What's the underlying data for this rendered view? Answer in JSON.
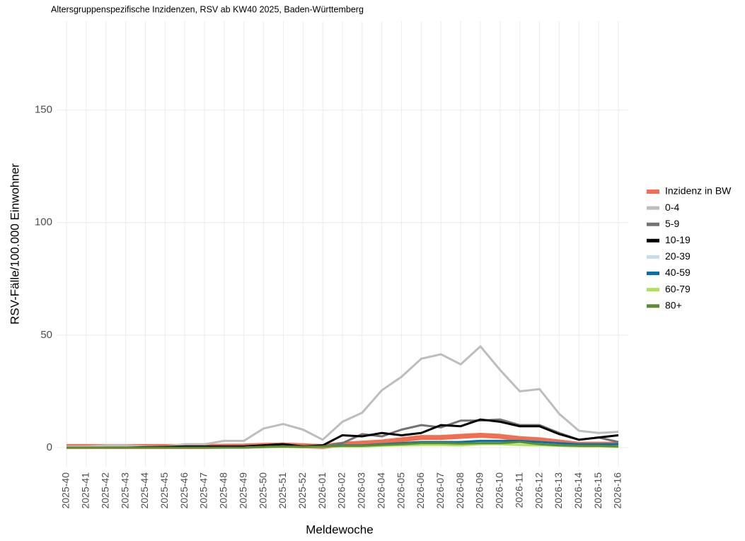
{
  "chart_data": {
    "type": "line",
    "title": "Altersgruppenspezifische Inzidenzen, RSV ab KW40 2025, Baden-Württemberg",
    "x_label": "Meldewoche",
    "y_label": "RSV-Fälle/100.000 Einwohner",
    "categories": [
      "2025-40",
      "2025-41",
      "2025-42",
      "2025-43",
      "2025-44",
      "2025-45",
      "2025-46",
      "2025-47",
      "2025-48",
      "2025-49",
      "2025-50",
      "2025-51",
      "2025-52",
      "2026-01",
      "2026-02",
      "2026-03",
      "2026-04",
      "2026-05",
      "2026-06",
      "2026-07",
      "2026-08",
      "2026-09",
      "2026-10",
      "2026-11",
      "2026-12",
      "2026-13",
      "2026-14",
      "2026-15",
      "2026-16"
    ],
    "ylim": [
      -8.5,
      189.5
    ],
    "yticks": [
      0,
      50,
      100,
      150
    ],
    "grid": true,
    "legend": "right",
    "series": [
      {
        "name": "Inzidenz in BW",
        "color": "#f26e50",
        "width": 7,
        "values": [
          0.5,
          0.5,
          0.5,
          0.5,
          0.5,
          0.5,
          0.5,
          0.5,
          0.6,
          0.7,
          1,
          1.2,
          0.8,
          0.5,
          1.5,
          2,
          2.5,
          3.5,
          4.5,
          4.5,
          5,
          5.5,
          5,
          4,
          3.5,
          2.5,
          1.5,
          1.5,
          1.5
        ]
      },
      {
        "name": "0-4",
        "color": "#bdbdbd",
        "width": 3,
        "values": [
          0.5,
          0.5,
          1,
          1,
          0.5,
          0.5,
          1.5,
          1.5,
          3,
          3,
          8.5,
          10.5,
          8,
          3.5,
          11.5,
          15.5,
          25.5,
          31.5,
          39.5,
          41.5,
          37,
          45,
          34.5,
          25,
          26,
          15,
          7.5,
          6.5,
          7
        ]
      },
      {
        "name": "5-9",
        "color": "#737373",
        "width": 3,
        "values": [
          0,
          0,
          0,
          0,
          0,
          0,
          0.5,
          0.5,
          0.5,
          0.5,
          1,
          1.5,
          0.5,
          0.5,
          2,
          6,
          5,
          8,
          10,
          9,
          12,
          12,
          12.5,
          10,
          10,
          6.5,
          3.5,
          4.5,
          2.5
        ]
      },
      {
        "name": "10-19",
        "color": "#000000",
        "width": 3,
        "values": [
          0,
          0,
          0,
          0,
          0.2,
          0.3,
          0.5,
          0.5,
          0.5,
          0.5,
          1,
          1.5,
          0.5,
          1,
          5.5,
          5,
          6.5,
          5.5,
          6.5,
          10,
          9.5,
          12.5,
          11.5,
          9.5,
          9.5,
          6,
          3.5,
          4.5,
          5.5
        ]
      },
      {
        "name": "20-39",
        "color": "#c6dbef",
        "width": 3,
        "values": [
          0,
          0,
          0,
          0,
          0,
          0,
          0,
          0,
          0,
          0,
          0.3,
          0.5,
          0.3,
          0.5,
          1,
          1,
          1.5,
          2,
          2,
          2.5,
          2.5,
          3,
          3,
          3,
          2.5,
          2,
          1.5,
          1.5,
          1
        ]
      },
      {
        "name": "40-59",
        "color": "#0570b0",
        "width": 3,
        "values": [
          0,
          0,
          0,
          0,
          0,
          0,
          0,
          0,
          0,
          0,
          0.3,
          0.5,
          0.3,
          0.5,
          1,
          1,
          1.5,
          2,
          2.5,
          2.5,
          2.5,
          3,
          3,
          3,
          2.5,
          2,
          1.5,
          1.5,
          1.5
        ]
      },
      {
        "name": "60-79",
        "color": "#b2e05a",
        "width": 3,
        "values": [
          0,
          0,
          0,
          0,
          0,
          0,
          0,
          0,
          0,
          0,
          0.2,
          0.3,
          0.2,
          0.3,
          0.5,
          0.5,
          0.8,
          1,
          1.2,
          1.2,
          1,
          1.5,
          1.5,
          1.2,
          1,
          0.8,
          0.5,
          0.5,
          0.3
        ]
      },
      {
        "name": "80+",
        "color": "#5e8c31",
        "width": 3,
        "values": [
          0,
          0,
          0,
          0,
          0,
          0,
          0,
          0,
          0,
          0,
          0.3,
          0.5,
          0.3,
          0.5,
          0.8,
          0.8,
          1.2,
          1.5,
          2,
          2,
          1.8,
          2,
          2,
          2.5,
          1.5,
          1,
          0.8,
          0.8,
          0.5
        ]
      }
    ]
  }
}
